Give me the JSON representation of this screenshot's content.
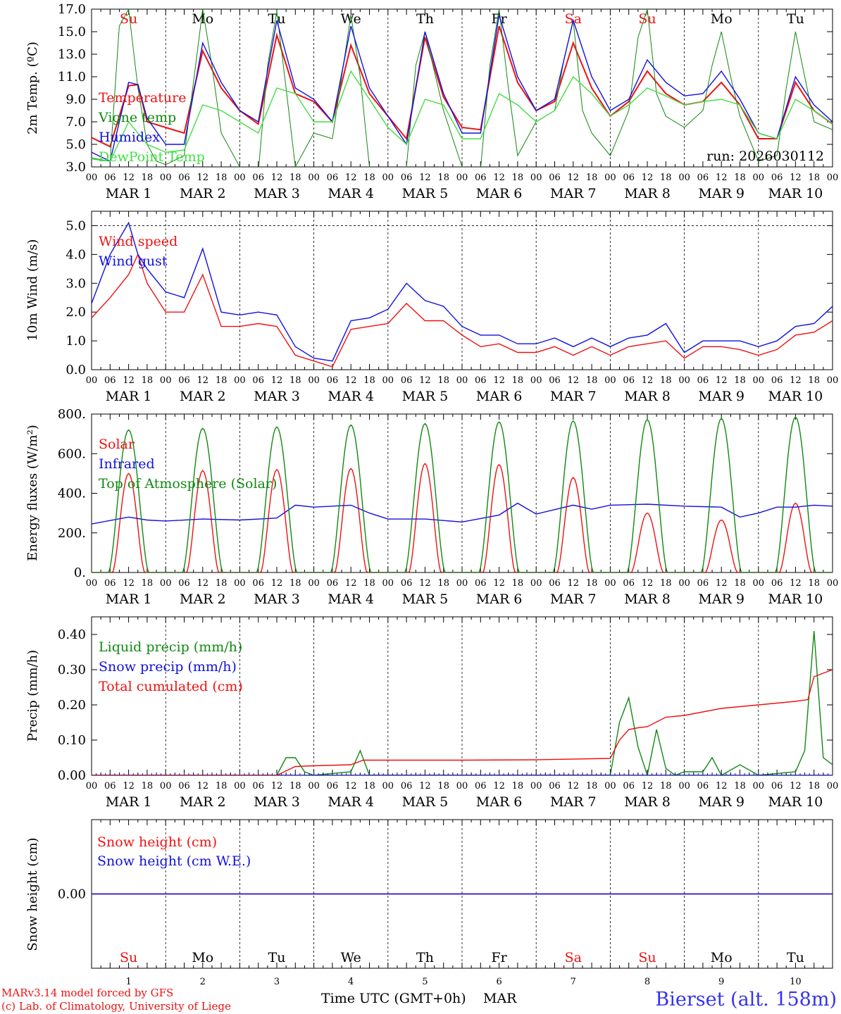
{
  "colors": {
    "red": "#ee1111",
    "green": "#118811",
    "lightgreen": "#44dd44",
    "blue": "#1111dd",
    "black": "#000000",
    "footer_blue": "#3333ee"
  },
  "days": [
    {
      "name": "Su",
      "num": "1",
      "weekend": true
    },
    {
      "name": "Mo",
      "num": "2",
      "weekend": false
    },
    {
      "name": "Tu",
      "num": "3",
      "weekend": false
    },
    {
      "name": "We",
      "num": "4",
      "weekend": false
    },
    {
      "name": "Th",
      "num": "5",
      "weekend": false
    },
    {
      "name": "Fr",
      "num": "6",
      "weekend": false
    },
    {
      "name": "Sa",
      "num": "7",
      "weekend": true
    },
    {
      "name": "Su",
      "num": "8",
      "weekend": true
    },
    {
      "name": "Mo",
      "num": "9",
      "weekend": false
    },
    {
      "name": "Tu",
      "num": "10",
      "weekend": false
    }
  ],
  "date_labels": [
    "MAR  1",
    "MAR  2",
    "MAR  3",
    "MAR  4",
    "MAR  5",
    "MAR  6",
    "MAR  7",
    "MAR  8",
    "MAR  9",
    "MAR 10"
  ],
  "hour_labels": [
    "00",
    "06",
    "12",
    "18"
  ],
  "run_label": "run: 2026030112",
  "footer": {
    "model": "MARv3.14 model forced by GFS",
    "lab": "(c) Lab. of Climatology, University of Liege",
    "xlabel": "Time UTC (GMT+0h)",
    "month": "MAR",
    "station": "Bierset (alt. 158m)"
  },
  "chart_data": [
    {
      "type": "line",
      "ylabel": "2m Temp. (ºC)",
      "ylim": [
        3.0,
        17.0
      ],
      "ticks": [
        3.0,
        5.0,
        7.0,
        9.0,
        11.0,
        13.0,
        15.0,
        17.0
      ],
      "tick_labels": [
        "3.0",
        "5.0",
        "7.0",
        "9.0",
        "11.0",
        "13.0",
        "15.0",
        "17.0"
      ],
      "x_unit": "hours since MAR 1 00UTC",
      "series": [
        {
          "name": "Temperature",
          "color": "red",
          "x": [
            0,
            6,
            12,
            15,
            18,
            24,
            30,
            36,
            42,
            48,
            54,
            60,
            66,
            72,
            78,
            84,
            90,
            96,
            102,
            108,
            114,
            120,
            126,
            132,
            138,
            144,
            150,
            156,
            162,
            168,
            174,
            180,
            186,
            192,
            198,
            204,
            210,
            216,
            222,
            228,
            234,
            240
          ],
          "values": [
            5.6,
            4.8,
            10.2,
            10.3,
            7.0,
            6.5,
            6.0,
            13.3,
            10.0,
            8.0,
            6.8,
            14.7,
            9.5,
            8.8,
            7.0,
            13.8,
            9.5,
            7.5,
            5.5,
            14.5,
            9.2,
            6.5,
            6.3,
            15.5,
            10.5,
            8.0,
            8.8,
            14.0,
            10.0,
            7.5,
            8.8,
            11.5,
            9.5,
            8.5,
            8.8,
            10.5,
            8.5,
            5.5,
            5.5,
            10.5,
            8.0,
            6.8
          ]
        },
        {
          "name": "Vigne temp",
          "color": "green",
          "x": [
            0,
            6,
            9,
            12,
            15,
            18,
            21,
            24,
            30,
            36,
            39,
            42,
            48,
            54,
            57,
            60,
            63,
            66,
            72,
            78,
            84,
            87,
            90,
            96,
            102,
            105,
            108,
            114,
            120,
            126,
            129,
            132,
            135,
            138,
            144,
            150,
            153,
            156,
            159,
            162,
            168,
            174,
            177,
            180,
            183,
            186,
            192,
            198,
            201,
            204,
            207,
            210,
            216,
            222,
            225,
            228,
            231,
            234,
            240
          ],
          "values": [
            3.8,
            3.5,
            15.5,
            17.0,
            10.0,
            5.0,
            3.5,
            3.2,
            4.0,
            17.0,
            12.0,
            6.0,
            3.0,
            2.5,
            12.0,
            16.8,
            10.0,
            3.0,
            6.0,
            5.5,
            16.5,
            11.0,
            3.0,
            2.5,
            3.0,
            12.0,
            15.0,
            8.0,
            3.0,
            2.8,
            12.0,
            17.0,
            10.0,
            4.0,
            7.0,
            8.0,
            12.5,
            16.0,
            8.0,
            6.0,
            4.0,
            8.0,
            14.5,
            17.0,
            9.5,
            7.5,
            6.5,
            8.0,
            12.0,
            15.0,
            11.0,
            7.5,
            3.5,
            4.0,
            10.0,
            15.0,
            11.0,
            7.0,
            6.3
          ]
        },
        {
          "name": "Humidex",
          "color": "blue",
          "x": [
            0,
            6,
            12,
            15,
            18,
            24,
            30,
            36,
            42,
            48,
            54,
            60,
            66,
            72,
            78,
            84,
            90,
            96,
            102,
            108,
            114,
            120,
            126,
            132,
            138,
            144,
            150,
            156,
            162,
            168,
            174,
            180,
            186,
            192,
            198,
            204,
            210,
            216,
            222,
            228,
            234,
            240
          ],
          "values": [
            4.3,
            3.5,
            10.5,
            10.3,
            7.3,
            5.0,
            5.0,
            14.0,
            10.5,
            8.0,
            7.0,
            16.0,
            10.0,
            9.0,
            7.0,
            15.5,
            10.0,
            7.5,
            5.0,
            15.0,
            9.5,
            6.0,
            6.0,
            16.5,
            11.0,
            8.0,
            9.0,
            16.0,
            11.0,
            8.0,
            9.0,
            12.5,
            10.5,
            9.3,
            9.5,
            11.5,
            9.0,
            6.0,
            5.5,
            11.0,
            8.5,
            7.0
          ]
        },
        {
          "name": "DewPoint Temp",
          "color": "lightgreen",
          "x": [
            0,
            6,
            12,
            18,
            24,
            30,
            36,
            42,
            48,
            54,
            60,
            66,
            72,
            78,
            84,
            90,
            96,
            102,
            108,
            114,
            120,
            126,
            132,
            138,
            144,
            150,
            156,
            162,
            168,
            174,
            180,
            186,
            192,
            198,
            204,
            210,
            216,
            222,
            228,
            234,
            240
          ],
          "values": [
            3.7,
            3.5,
            7.0,
            5.0,
            4.3,
            4.5,
            8.5,
            8.0,
            7.0,
            6.0,
            10.0,
            9.5,
            7.0,
            7.0,
            11.5,
            9.0,
            6.5,
            5.0,
            9.0,
            8.5,
            5.5,
            5.5,
            9.5,
            8.5,
            7.0,
            8.0,
            11.0,
            9.5,
            7.5,
            8.5,
            10.0,
            9.3,
            8.5,
            8.8,
            9.0,
            8.5,
            6.0,
            5.5,
            9.0,
            8.0,
            6.8
          ]
        }
      ]
    },
    {
      "type": "line",
      "ylabel": "10m Wind (m/s)",
      "ylim": [
        0.0,
        5.5
      ],
      "ticks": [
        0.0,
        1.0,
        2.0,
        3.0,
        4.0,
        5.0
      ],
      "tick_labels": [
        "0.0",
        "1.0",
        "2.0",
        "3.0",
        "4.0",
        "5.0"
      ],
      "dashed_line_at": 5.0,
      "series": [
        {
          "name": "Wind speed",
          "color": "red",
          "x": [
            0,
            6,
            12,
            15,
            18,
            24,
            30,
            36,
            42,
            48,
            54,
            60,
            66,
            72,
            78,
            84,
            90,
            96,
            102,
            108,
            114,
            120,
            126,
            132,
            138,
            144,
            150,
            156,
            162,
            168,
            174,
            180,
            186,
            192,
            198,
            204,
            210,
            216,
            222,
            228,
            234,
            240
          ],
          "values": [
            1.8,
            2.5,
            3.3,
            4.0,
            3.0,
            2.0,
            2.0,
            3.3,
            1.5,
            1.5,
            1.6,
            1.5,
            0.5,
            0.3,
            0.1,
            1.4,
            1.5,
            1.6,
            2.3,
            1.7,
            1.7,
            1.2,
            0.8,
            0.9,
            0.6,
            0.6,
            0.8,
            0.5,
            0.8,
            0.5,
            0.8,
            0.9,
            1.0,
            0.4,
            0.8,
            0.8,
            0.7,
            0.5,
            0.7,
            1.2,
            1.3,
            1.7
          ]
        },
        {
          "name": "Wind gust",
          "color": "blue",
          "x": [
            0,
            6,
            12,
            15,
            18,
            24,
            30,
            36,
            42,
            48,
            54,
            60,
            66,
            72,
            78,
            84,
            90,
            96,
            102,
            108,
            114,
            120,
            126,
            132,
            138,
            144,
            150,
            156,
            162,
            168,
            174,
            180,
            186,
            192,
            198,
            204,
            210,
            216,
            222,
            228,
            234,
            240
          ],
          "values": [
            2.3,
            4.0,
            5.1,
            4.0,
            3.5,
            2.7,
            2.5,
            4.2,
            2.0,
            1.9,
            2.0,
            1.9,
            0.8,
            0.4,
            0.3,
            1.7,
            1.8,
            2.1,
            3.0,
            2.4,
            2.2,
            1.5,
            1.2,
            1.2,
            0.9,
            0.9,
            1.1,
            0.8,
            1.1,
            0.8,
            1.1,
            1.2,
            1.6,
            0.6,
            1.0,
            1.0,
            1.0,
            0.8,
            1.0,
            1.5,
            1.6,
            2.2
          ]
        }
      ]
    },
    {
      "type": "line",
      "ylabel": "Energy fluxes (W/m²)",
      "ylim": [
        0,
        800
      ],
      "ticks": [
        0,
        200,
        400,
        600,
        800
      ],
      "tick_labels": [
        "0.",
        "200.",
        "400.",
        "600.",
        "800."
      ],
      "series": [
        {
          "name": "Solar",
          "color": "red",
          "peaks": [
            500,
            515,
            520,
            525,
            550,
            545,
            480,
            300,
            265,
            350
          ]
        },
        {
          "name": "Infrared",
          "color": "blue",
          "x": [
            0,
            12,
            18,
            24,
            36,
            48,
            60,
            66,
            72,
            78,
            84,
            90,
            96,
            108,
            120,
            132,
            138,
            144,
            156,
            162,
            168,
            180,
            192,
            204,
            210,
            216,
            222,
            228,
            234,
            240
          ],
          "values": [
            245,
            280,
            265,
            260,
            270,
            265,
            275,
            340,
            330,
            335,
            340,
            300,
            270,
            270,
            255,
            290,
            350,
            295,
            340,
            320,
            340,
            345,
            335,
            330,
            280,
            300,
            330,
            330,
            340,
            335
          ]
        },
        {
          "name": "Top of Atmosphere (Solar)",
          "color": "green",
          "peaks": [
            720,
            728,
            735,
            745,
            752,
            760,
            765,
            772,
            778,
            785
          ]
        }
      ]
    },
    {
      "type": "line",
      "ylabel": "Precip (mm/h)",
      "ylim": [
        0.0,
        0.45
      ],
      "ticks": [
        0.0,
        0.1,
        0.2,
        0.3,
        0.4
      ],
      "tick_labels": [
        "0.00",
        "0.10",
        "0.20",
        "0.30",
        "0.40"
      ],
      "series": [
        {
          "name": "Liquid precip (mm/h)",
          "color": "green",
          "x": [
            0,
            60,
            63,
            66,
            69,
            72,
            84,
            87,
            90,
            96,
            168,
            171,
            174,
            177,
            180,
            183,
            186,
            189,
            192,
            198,
            201,
            204,
            210,
            216,
            228,
            231,
            234,
            237,
            240
          ],
          "values": [
            0,
            0,
            0.05,
            0.05,
            0.01,
            0,
            0.01,
            0.07,
            0,
            0,
            0,
            0.15,
            0.22,
            0.08,
            0,
            0.13,
            0.02,
            0,
            0.01,
            0.01,
            0.05,
            0,
            0.03,
            0,
            0.01,
            0.07,
            0.41,
            0.05,
            0.03
          ]
        },
        {
          "name": "Snow precip (mm/h)",
          "color": "blue",
          "x": [
            0,
            240
          ],
          "values": [
            0,
            0
          ]
        },
        {
          "name": "Total cumulated (cm)",
          "color": "red",
          "x": [
            0,
            60,
            66,
            72,
            84,
            88,
            96,
            120,
            144,
            168,
            171,
            174,
            177,
            180,
            186,
            192,
            204,
            216,
            228,
            232,
            234,
            240
          ],
          "values": [
            0,
            0,
            0.025,
            0.027,
            0.03,
            0.043,
            0.043,
            0.043,
            0.044,
            0.048,
            0.1,
            0.13,
            0.135,
            0.138,
            0.165,
            0.17,
            0.19,
            0.2,
            0.21,
            0.215,
            0.28,
            0.3
          ]
        }
      ]
    },
    {
      "type": "line",
      "ylabel": "Snow height (cm)",
      "ylim": [
        -1,
        1
      ],
      "ticks": [
        0
      ],
      "tick_labels": [
        "0.00"
      ],
      "series": [
        {
          "name": "Snow height (cm)",
          "color": "red",
          "x": [
            0,
            240
          ],
          "values": [
            0,
            0
          ]
        },
        {
          "name": "Snow height (cm W.E.)",
          "color": "blue",
          "x": [
            0,
            240
          ],
          "values": [
            0,
            0
          ]
        }
      ]
    }
  ]
}
